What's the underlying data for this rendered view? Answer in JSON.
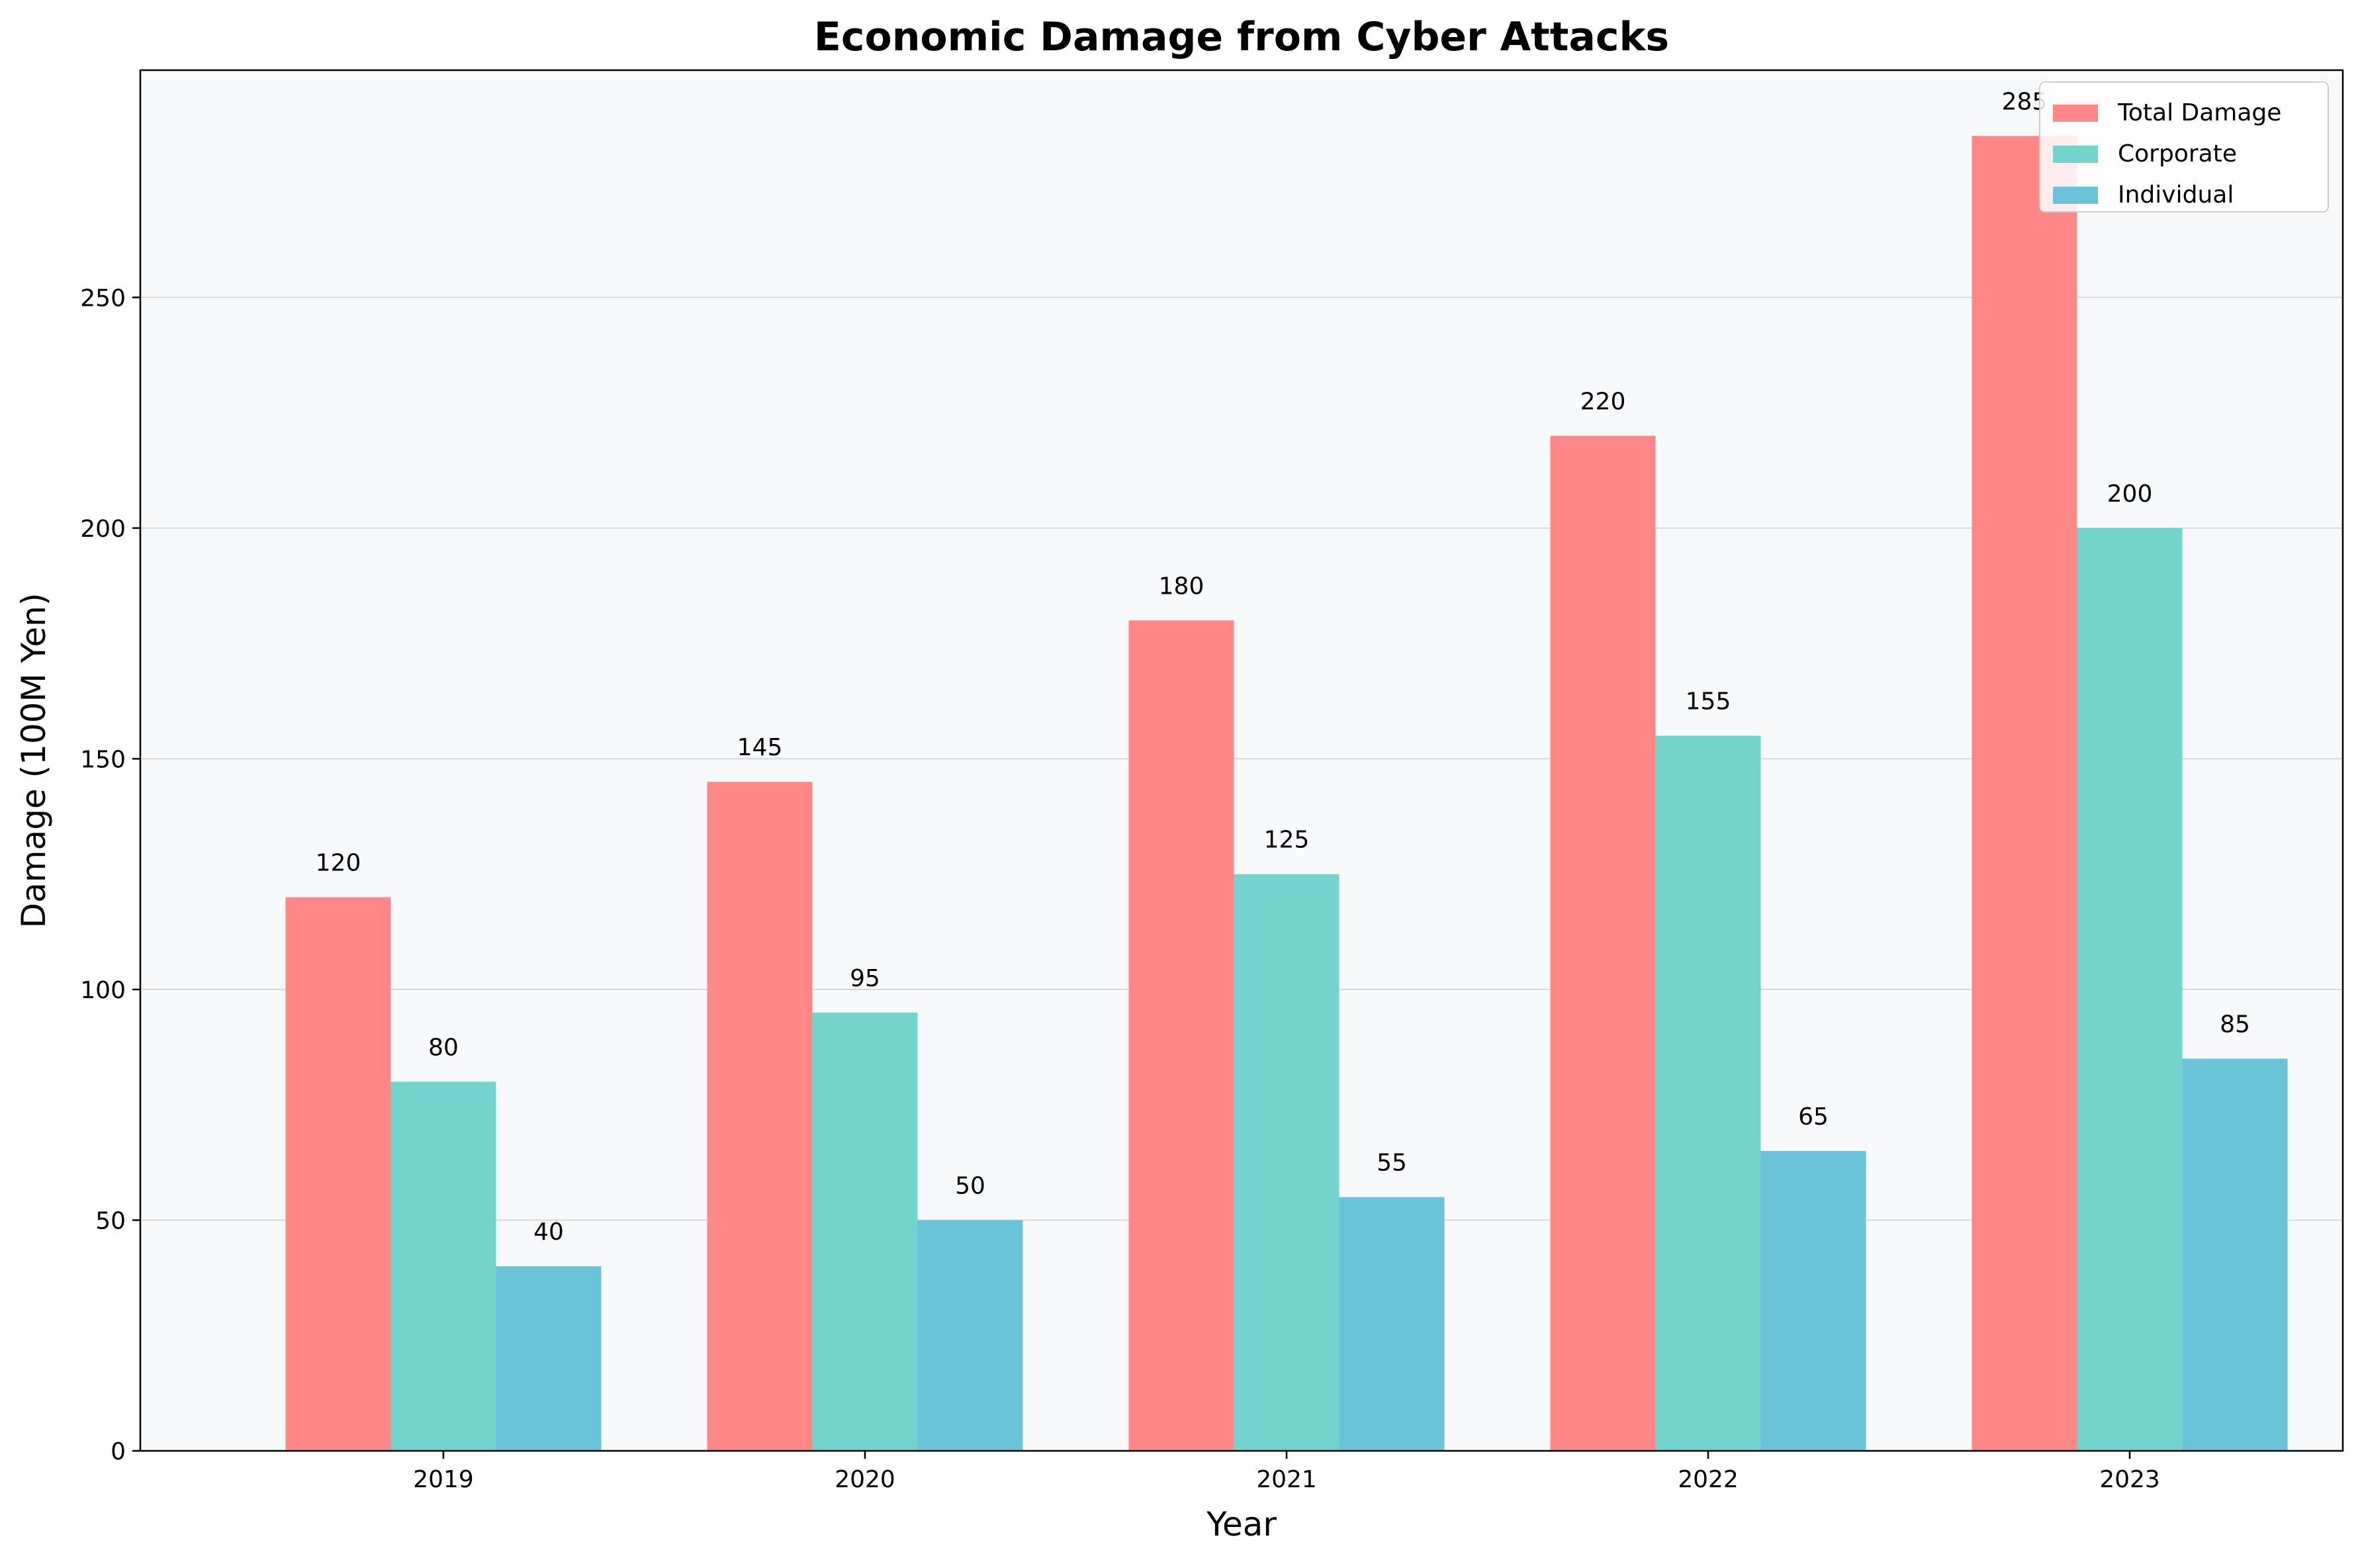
{
  "chart_data": {
    "type": "bar",
    "title": "Economic Damage from Cyber Attacks",
    "xlabel": "Year",
    "ylabel": "Damage (100M Yen)",
    "categories": [
      "2019",
      "2020",
      "2021",
      "2022",
      "2023"
    ],
    "series": [
      {
        "name": "Total Damage",
        "color": "#ff8787",
        "values": [
          120,
          145,
          180,
          220,
          285
        ]
      },
      {
        "name": "Corporate",
        "color": "#72d4cd",
        "values": [
          80,
          95,
          125,
          155,
          200
        ]
      },
      {
        "name": "Individual",
        "color": "#6ac3d9",
        "values": [
          40,
          50,
          55,
          65,
          85
        ]
      }
    ],
    "ylim": [
      0,
      299.25
    ],
    "yticks": [
      0,
      50,
      100,
      150,
      200,
      250
    ],
    "grid": "horizontal",
    "legend_position": "top-right",
    "plot_background": "#f8f9fa"
  }
}
